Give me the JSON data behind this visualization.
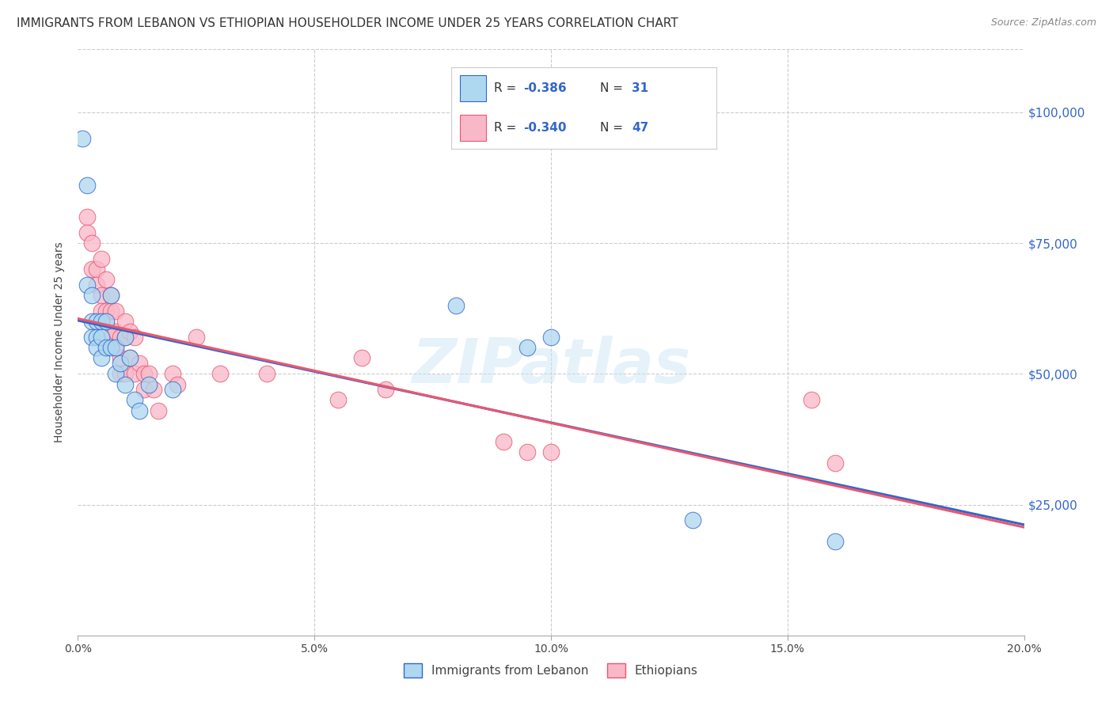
{
  "title": "IMMIGRANTS FROM LEBANON VS ETHIOPIAN HOUSEHOLDER INCOME UNDER 25 YEARS CORRELATION CHART",
  "source": "Source: ZipAtlas.com",
  "ylabel": "Householder Income Under 25 years",
  "xlim": [
    0.0,
    0.2
  ],
  "ylim": [
    0,
    112000
  ],
  "xtick_labels": [
    "0.0%",
    "5.0%",
    "10.0%",
    "15.0%",
    "20.0%"
  ],
  "xtick_vals": [
    0.0,
    0.05,
    0.1,
    0.15,
    0.2
  ],
  "ytick_labels": [
    "$25,000",
    "$50,000",
    "$75,000",
    "$100,000"
  ],
  "ytick_vals": [
    25000,
    50000,
    75000,
    100000
  ],
  "legend_labels": [
    "Immigrants from Lebanon",
    "Ethiopians"
  ],
  "lebanon_color": "#add8f0",
  "ethiopia_color": "#f9b8c8",
  "lebanon_line_color": "#3366cc",
  "ethiopia_line_color": "#e85870",
  "watermark": "ZIPatlas",
  "R_lebanon": "-0.386",
  "N_lebanon": "31",
  "R_ethiopia": "-0.340",
  "N_ethiopia": "47",
  "lebanon_x": [
    0.001,
    0.002,
    0.002,
    0.003,
    0.003,
    0.003,
    0.004,
    0.004,
    0.004,
    0.005,
    0.005,
    0.005,
    0.006,
    0.006,
    0.007,
    0.007,
    0.008,
    0.008,
    0.009,
    0.01,
    0.01,
    0.011,
    0.012,
    0.013,
    0.015,
    0.02,
    0.08,
    0.095,
    0.1,
    0.13,
    0.16
  ],
  "lebanon_y": [
    95000,
    86000,
    67000,
    65000,
    60000,
    57000,
    60000,
    57000,
    55000,
    60000,
    57000,
    53000,
    60000,
    55000,
    65000,
    55000,
    50000,
    55000,
    52000,
    57000,
    48000,
    53000,
    45000,
    43000,
    48000,
    47000,
    63000,
    55000,
    57000,
    22000,
    18000
  ],
  "ethiopia_x": [
    0.002,
    0.002,
    0.003,
    0.003,
    0.004,
    0.004,
    0.005,
    0.005,
    0.005,
    0.006,
    0.006,
    0.006,
    0.007,
    0.007,
    0.007,
    0.008,
    0.008,
    0.008,
    0.009,
    0.009,
    0.009,
    0.01,
    0.01,
    0.01,
    0.011,
    0.011,
    0.012,
    0.012,
    0.013,
    0.014,
    0.014,
    0.015,
    0.016,
    0.017,
    0.02,
    0.021,
    0.025,
    0.03,
    0.04,
    0.055,
    0.06,
    0.065,
    0.09,
    0.095,
    0.1,
    0.155,
    0.16
  ],
  "ethiopia_y": [
    80000,
    77000,
    75000,
    70000,
    70000,
    67000,
    72000,
    65000,
    62000,
    68000,
    62000,
    60000,
    65000,
    62000,
    57000,
    62000,
    58000,
    55000,
    57000,
    53000,
    50000,
    60000,
    57000,
    50000,
    58000,
    53000,
    57000,
    50000,
    52000,
    50000,
    47000,
    50000,
    47000,
    43000,
    50000,
    48000,
    57000,
    50000,
    50000,
    45000,
    53000,
    47000,
    37000,
    35000,
    35000,
    45000,
    33000
  ],
  "background_color": "#ffffff",
  "grid_color": "#cccccc",
  "title_fontsize": 11,
  "axis_label_fontsize": 10,
  "tick_label_fontsize": 10,
  "legend_R_N_color": "#3366cc",
  "legend_text_color": "#333333"
}
